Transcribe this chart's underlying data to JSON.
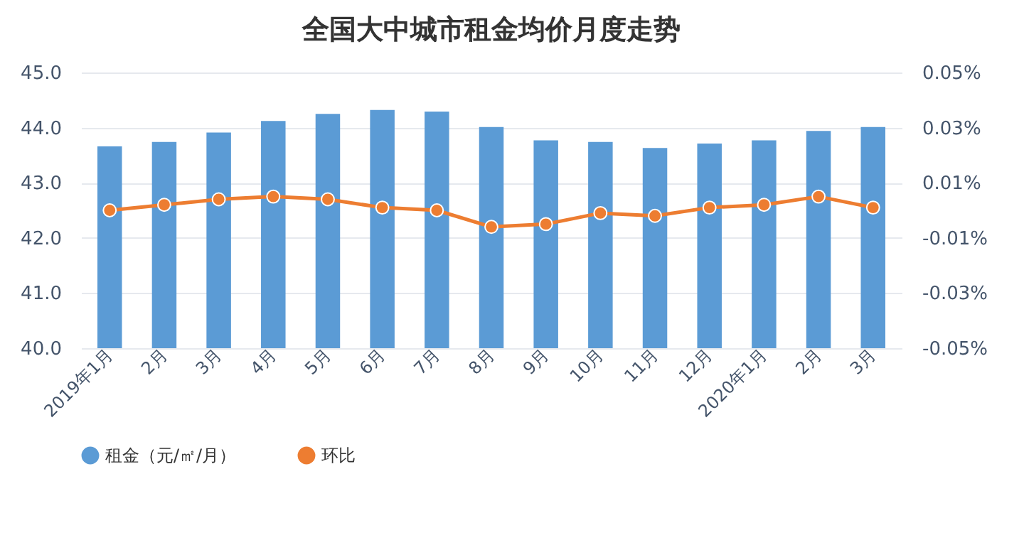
{
  "chart_data": {
    "type": "bar",
    "title": "全国大中城市租金均价月度走势",
    "categories": [
      "2019年1月",
      "2月",
      "3月",
      "4月",
      "5月",
      "6月",
      "7月",
      "8月",
      "9月",
      "10月",
      "11月",
      "12月",
      "2020年1月",
      "2月",
      "3月"
    ],
    "series": [
      {
        "name": "租金（元/㎡/月）",
        "type": "bar",
        "color": "#5b9bd5",
        "values": [
          43.66,
          43.74,
          43.91,
          44.12,
          44.25,
          44.32,
          44.29,
          44.01,
          43.77,
          43.74,
          43.63,
          43.71,
          43.77,
          43.94,
          44.01
        ]
      },
      {
        "name": "环比",
        "type": "line",
        "axis": "y2",
        "color": "#ed7d31",
        "values": [
          0.0,
          0.002,
          0.004,
          0.005,
          0.004,
          0.001,
          0.0,
          -0.006,
          -0.005,
          -0.001,
          -0.002,
          0.001,
          0.002,
          0.005,
          0.001
        ]
      }
    ],
    "ylim": [
      40,
      45
    ],
    "yticks": [
      {
        "value": 40,
        "label": "40.0"
      },
      {
        "value": 41,
        "label": "41.0"
      },
      {
        "value": 42,
        "label": "42.0"
      },
      {
        "value": 43,
        "label": "43.0"
      },
      {
        "value": 44,
        "label": "44.0"
      },
      {
        "value": 45,
        "label": "45.0"
      }
    ],
    "y2lim": [
      -0.05,
      0.05
    ],
    "y2ticks": [
      {
        "value": -0.05,
        "label": "-0.05%"
      },
      {
        "value": -0.03,
        "label": "-0.03%"
      },
      {
        "value": -0.01,
        "label": "-0.01%"
      },
      {
        "value": 0.01,
        "label": "0.01%"
      },
      {
        "value": 0.03,
        "label": "0.03%"
      },
      {
        "value": 0.05,
        "label": "0.05%"
      }
    ],
    "grid": "y",
    "legend": "bottom",
    "marker": "circle",
    "line_style": "solid"
  }
}
